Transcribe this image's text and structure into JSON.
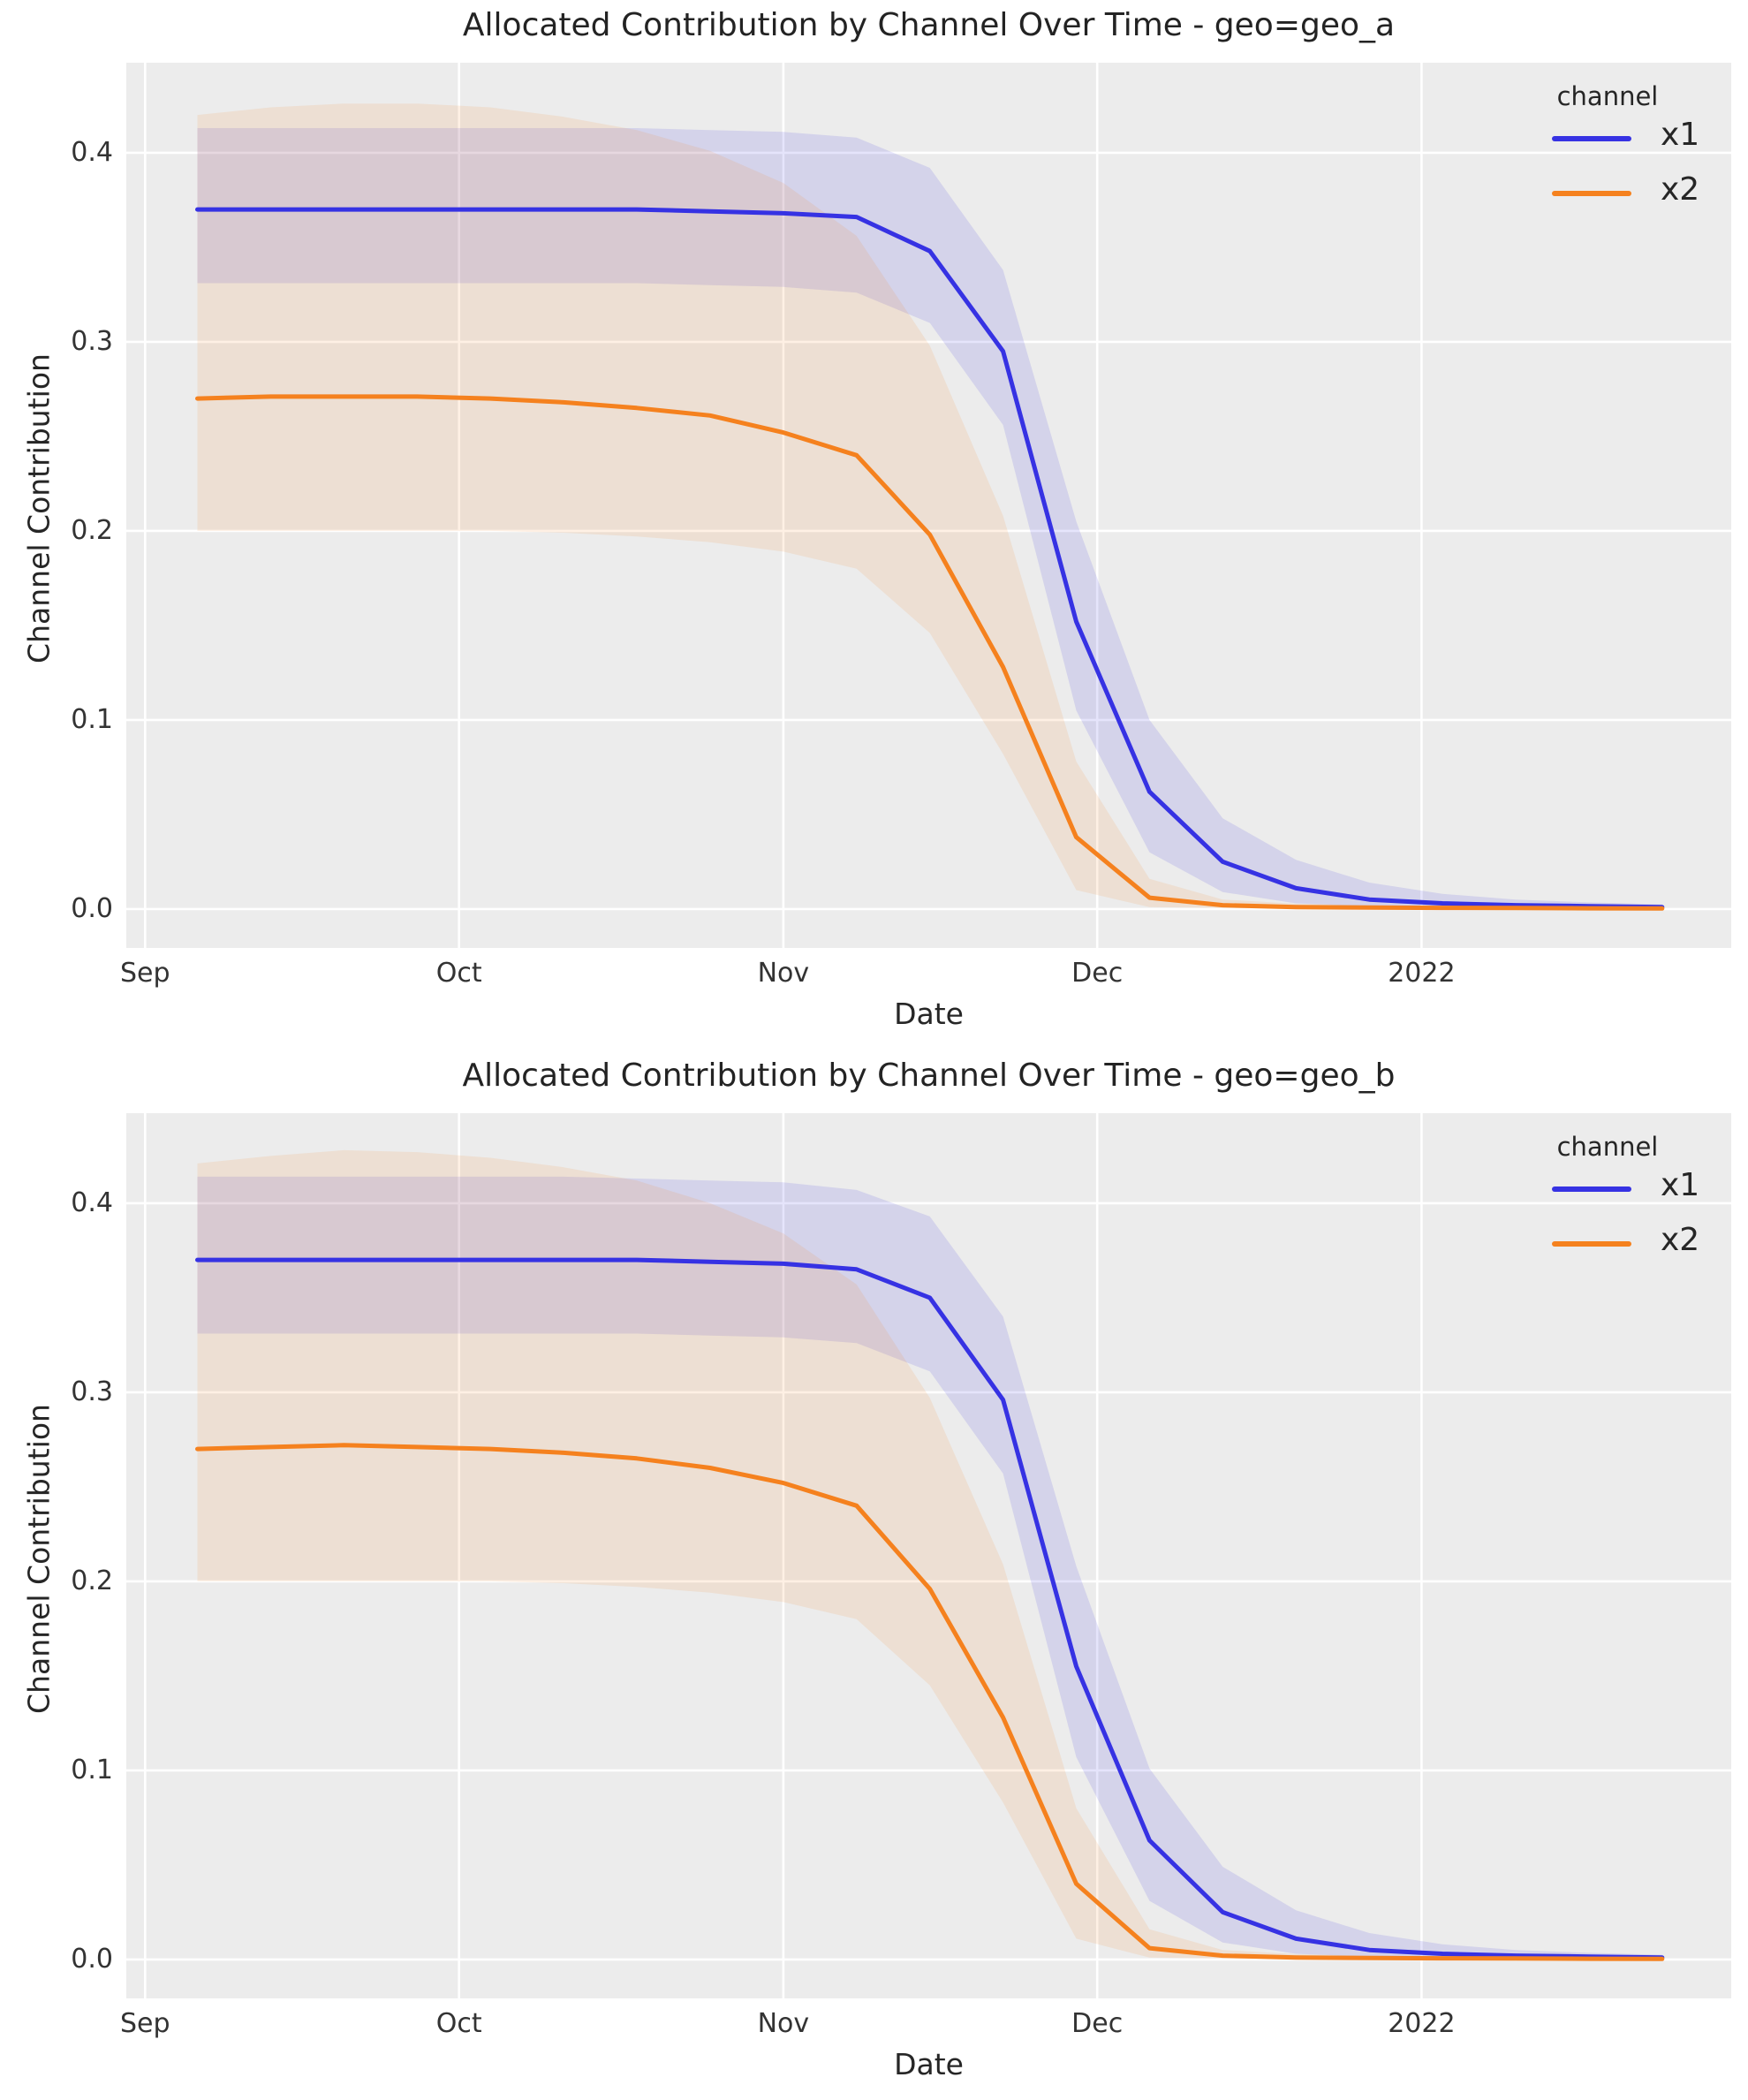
{
  "figure": {
    "background": "#ffffff",
    "plot_background": "#ececec",
    "grid_color": "#ffffff",
    "accent_blue": "#3632e3",
    "accent_orange": "#f5811e"
  },
  "charts": [
    {
      "title": "Allocated Contribution by Channel Over Time - geo=geo_a",
      "xlabel": "Date",
      "ylabel": "Channel Contribution",
      "legend": {
        "title": "channel",
        "items": [
          {
            "label": "x1",
            "color": "#3632e3"
          },
          {
            "label": "x2",
            "color": "#f5811e"
          }
        ]
      },
      "x_ticks": [
        {
          "label": "Sep",
          "day": 0
        },
        {
          "label": "Oct",
          "day": 30
        },
        {
          "label": "Nov",
          "day": 61
        },
        {
          "label": "Dec",
          "day": 91
        },
        {
          "label": "2022",
          "day": 122
        }
      ],
      "y_ticks": [
        {
          "label": "0.0",
          "value": 0.0
        },
        {
          "label": "0.1",
          "value": 0.1
        },
        {
          "label": "0.2",
          "value": 0.2
        },
        {
          "label": "0.3",
          "value": 0.3
        },
        {
          "label": "0.4",
          "value": 0.4
        }
      ],
      "chart_data": {
        "type": "line",
        "title": "Allocated Contribution by Channel Over Time - geo=geo_a",
        "xlabel": "Date",
        "ylabel": "Channel Contribution",
        "grid": true,
        "legend_position": "upper right",
        "ylim": [
          -0.0206,
          0.4476
        ],
        "x_day_range": [
          -1.8,
          151.6
        ],
        "x_dates": [
          "2021-09-06",
          "2021-09-13",
          "2021-09-20",
          "2021-09-27",
          "2021-10-04",
          "2021-10-11",
          "2021-10-18",
          "2021-10-25",
          "2021-11-01",
          "2021-11-08",
          "2021-11-15",
          "2021-11-22",
          "2021-11-29",
          "2021-12-06",
          "2021-12-13",
          "2021-12-20",
          "2021-12-27",
          "2022-01-03",
          "2022-01-10",
          "2022-01-17",
          "2022-01-24"
        ],
        "x_days": [
          5,
          12,
          19,
          26,
          33,
          40,
          47,
          54,
          61,
          68,
          75,
          82,
          89,
          96,
          103,
          110,
          117,
          124,
          131,
          138,
          145
        ],
        "series": [
          {
            "name": "x1",
            "color": "#3632e3",
            "band_alpha": 0.13,
            "values": [
              0.37,
              0.37,
              0.37,
              0.37,
              0.37,
              0.37,
              0.37,
              0.369,
              0.368,
              0.366,
              0.348,
              0.295,
              0.152,
              0.062,
              0.025,
              0.011,
              0.005,
              0.003,
              0.002,
              0.0015,
              0.001
            ],
            "lower": [
              0.331,
              0.331,
              0.331,
              0.331,
              0.331,
              0.331,
              0.331,
              0.33,
              0.329,
              0.326,
              0.31,
              0.256,
              0.105,
              0.03,
              0.009,
              0.003,
              0.0015,
              0.001,
              0.0006,
              0.0004,
              0.0003
            ],
            "upper": [
              0.413,
              0.413,
              0.413,
              0.413,
              0.413,
              0.413,
              0.413,
              0.412,
              0.411,
              0.408,
              0.392,
              0.338,
              0.205,
              0.1,
              0.048,
              0.026,
              0.014,
              0.008,
              0.005,
              0.0035,
              0.0025
            ]
          },
          {
            "name": "x2",
            "color": "#f5811e",
            "band_alpha": 0.12,
            "values": [
              0.27,
              0.271,
              0.271,
              0.271,
              0.27,
              0.268,
              0.265,
              0.261,
              0.252,
              0.24,
              0.198,
              0.128,
              0.038,
              0.006,
              0.002,
              0.001,
              0.0008,
              0.0006,
              0.0005,
              0.0004,
              0.0003
            ],
            "lower": [
              0.2,
              0.2,
              0.2,
              0.2,
              0.2,
              0.199,
              0.197,
              0.194,
              0.189,
              0.18,
              0.146,
              0.082,
              0.01,
              0.001,
              0.0005,
              0.0003,
              0.0002,
              0.0002,
              0.0001,
              0.0001,
              0.0001
            ],
            "upper": [
              0.42,
              0.424,
              0.426,
              0.426,
              0.424,
              0.419,
              0.412,
              0.401,
              0.384,
              0.356,
              0.298,
              0.208,
              0.078,
              0.016,
              0.005,
              0.0028,
              0.002,
              0.0015,
              0.0012,
              0.001,
              0.0008
            ]
          }
        ]
      }
    },
    {
      "title": "Allocated Contribution by Channel Over Time - geo=geo_b",
      "xlabel": "Date",
      "ylabel": "Channel Contribution",
      "legend": {
        "title": "channel",
        "items": [
          {
            "label": "x1",
            "color": "#3632e3"
          },
          {
            "label": "x2",
            "color": "#f5811e"
          }
        ]
      },
      "x_ticks": [
        {
          "label": "Sep",
          "day": 0
        },
        {
          "label": "Oct",
          "day": 30
        },
        {
          "label": "Nov",
          "day": 61
        },
        {
          "label": "Dec",
          "day": 91
        },
        {
          "label": "2022",
          "day": 122
        }
      ],
      "y_ticks": [
        {
          "label": "0.0",
          "value": 0.0
        },
        {
          "label": "0.1",
          "value": 0.1
        },
        {
          "label": "0.2",
          "value": 0.2
        },
        {
          "label": "0.3",
          "value": 0.3
        },
        {
          "label": "0.4",
          "value": 0.4
        }
      ],
      "chart_data": {
        "type": "line",
        "title": "Allocated Contribution by Channel Over Time - geo=geo_b",
        "xlabel": "Date",
        "ylabel": "Channel Contribution",
        "grid": true,
        "legend_position": "upper right",
        "ylim": [
          -0.0206,
          0.4476
        ],
        "x_day_range": [
          -1.8,
          151.6
        ],
        "x_dates": [
          "2021-09-06",
          "2021-09-13",
          "2021-09-20",
          "2021-09-27",
          "2021-10-04",
          "2021-10-11",
          "2021-10-18",
          "2021-10-25",
          "2021-11-01",
          "2021-11-08",
          "2021-11-15",
          "2021-11-22",
          "2021-11-29",
          "2021-12-06",
          "2021-12-13",
          "2021-12-20",
          "2021-12-27",
          "2022-01-03",
          "2022-01-10",
          "2022-01-17",
          "2022-01-24"
        ],
        "x_days": [
          5,
          12,
          19,
          26,
          33,
          40,
          47,
          54,
          61,
          68,
          75,
          82,
          89,
          96,
          103,
          110,
          117,
          124,
          131,
          138,
          145
        ],
        "series": [
          {
            "name": "x1",
            "color": "#3632e3",
            "band_alpha": 0.13,
            "values": [
              0.37,
              0.37,
              0.37,
              0.37,
              0.37,
              0.37,
              0.37,
              0.369,
              0.368,
              0.365,
              0.35,
              0.296,
              0.155,
              0.063,
              0.025,
              0.011,
              0.005,
              0.003,
              0.002,
              0.0015,
              0.001
            ],
            "lower": [
              0.331,
              0.331,
              0.331,
              0.331,
              0.331,
              0.331,
              0.331,
              0.33,
              0.329,
              0.326,
              0.311,
              0.257,
              0.107,
              0.031,
              0.009,
              0.003,
              0.0015,
              0.001,
              0.0006,
              0.0004,
              0.0003
            ],
            "upper": [
              0.414,
              0.414,
              0.414,
              0.414,
              0.414,
              0.414,
              0.413,
              0.412,
              0.411,
              0.407,
              0.393,
              0.34,
              0.208,
              0.101,
              0.049,
              0.026,
              0.014,
              0.008,
              0.005,
              0.0035,
              0.0025
            ]
          },
          {
            "name": "x2",
            "color": "#f5811e",
            "band_alpha": 0.12,
            "values": [
              0.27,
              0.271,
              0.272,
              0.271,
              0.27,
              0.268,
              0.265,
              0.26,
              0.252,
              0.24,
              0.196,
              0.128,
              0.04,
              0.006,
              0.002,
              0.001,
              0.0008,
              0.0006,
              0.0005,
              0.0004,
              0.0003
            ],
            "lower": [
              0.2,
              0.2,
              0.2,
              0.2,
              0.2,
              0.199,
              0.197,
              0.194,
              0.189,
              0.18,
              0.145,
              0.083,
              0.011,
              0.001,
              0.0005,
              0.0003,
              0.0002,
              0.0002,
              0.0001,
              0.0001,
              0.0001
            ],
            "upper": [
              0.421,
              0.425,
              0.428,
              0.427,
              0.424,
              0.419,
              0.412,
              0.4,
              0.384,
              0.357,
              0.297,
              0.209,
              0.08,
              0.016,
              0.005,
              0.0028,
              0.002,
              0.0015,
              0.0012,
              0.001,
              0.0008
            ]
          }
        ]
      }
    }
  ]
}
